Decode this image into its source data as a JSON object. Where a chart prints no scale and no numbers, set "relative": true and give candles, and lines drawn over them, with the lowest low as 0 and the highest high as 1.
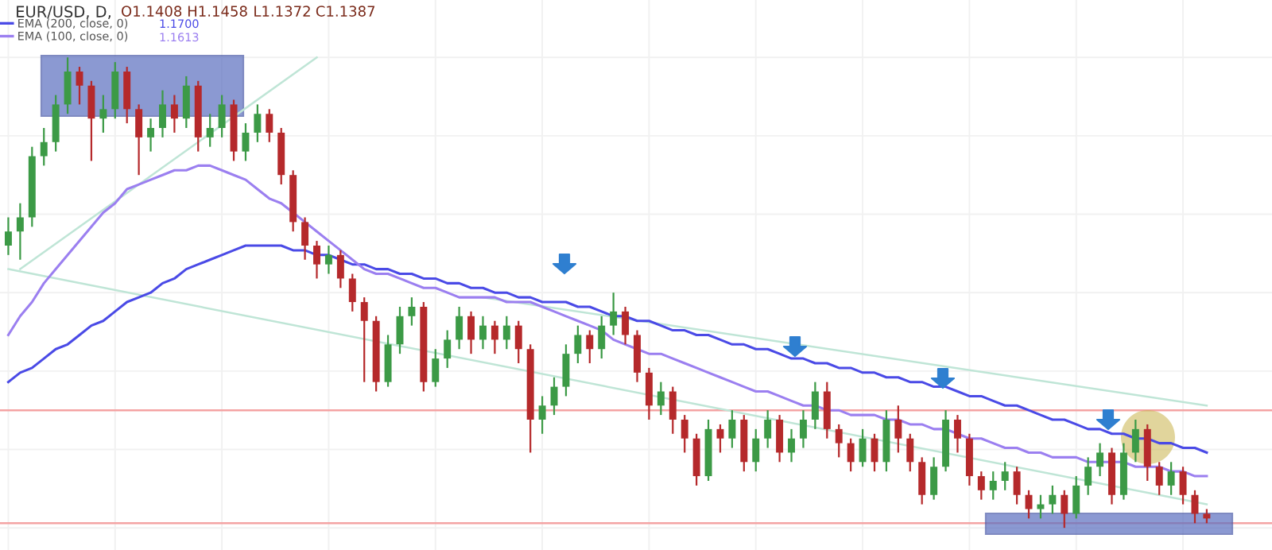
{
  "chart_data": {
    "type": "candlestick",
    "relative": true,
    "grid": true,
    "legend": "top left",
    "categories": [
      null,
      null,
      null,
      null,
      null,
      null,
      null,
      null,
      null,
      null,
      null,
      null,
      null,
      null,
      null,
      null,
      null,
      null,
      null,
      null,
      null,
      null,
      null,
      null,
      null,
      null,
      null,
      null,
      null,
      null,
      null,
      null,
      null,
      null,
      null,
      null,
      null,
      null,
      null,
      null,
      null,
      null,
      null,
      null,
      null,
      null,
      null,
      null,
      null,
      null,
      null,
      null,
      null,
      null,
      null,
      null,
      null,
      null,
      null,
      null,
      null,
      null,
      null,
      null,
      null,
      null,
      null,
      null,
      null,
      null,
      null,
      null,
      null,
      null,
      null,
      null,
      null,
      null,
      null,
      null,
      null,
      null,
      null,
      null,
      null,
      null,
      null,
      null,
      null,
      null,
      null,
      null,
      null,
      null,
      null,
      null,
      null,
      null,
      null,
      null,
      null,
      null
    ],
    "ohlc": [
      [
        0.6,
        0.66,
        0.58,
        0.63
      ],
      [
        0.63,
        0.69,
        0.57,
        0.66
      ],
      [
        0.66,
        0.81,
        0.64,
        0.79
      ],
      [
        0.79,
        0.85,
        0.77,
        0.82
      ],
      [
        0.82,
        0.92,
        0.8,
        0.9
      ],
      [
        0.9,
        1.0,
        0.88,
        0.97
      ],
      [
        0.97,
        0.98,
        0.9,
        0.94
      ],
      [
        0.94,
        0.95,
        0.78,
        0.87
      ],
      [
        0.87,
        0.92,
        0.84,
        0.89
      ],
      [
        0.89,
        0.99,
        0.87,
        0.97
      ],
      [
        0.97,
        0.98,
        0.86,
        0.89
      ],
      [
        0.89,
        0.9,
        0.75,
        0.83
      ],
      [
        0.83,
        0.87,
        0.8,
        0.85
      ],
      [
        0.85,
        0.93,
        0.83,
        0.9
      ],
      [
        0.9,
        0.92,
        0.84,
        0.87
      ],
      [
        0.87,
        0.96,
        0.85,
        0.94
      ],
      [
        0.94,
        0.95,
        0.8,
        0.83
      ],
      [
        0.83,
        0.88,
        0.81,
        0.85
      ],
      [
        0.85,
        0.92,
        0.83,
        0.9
      ],
      [
        0.9,
        0.91,
        0.78,
        0.8
      ],
      [
        0.8,
        0.86,
        0.78,
        0.84
      ],
      [
        0.84,
        0.9,
        0.82,
        0.88
      ],
      [
        0.88,
        0.89,
        0.82,
        0.84
      ],
      [
        0.84,
        0.85,
        0.73,
        0.75
      ],
      [
        0.75,
        0.76,
        0.63,
        0.65
      ],
      [
        0.65,
        0.66,
        0.57,
        0.6
      ],
      [
        0.6,
        0.61,
        0.53,
        0.56
      ],
      [
        0.56,
        0.6,
        0.54,
        0.58
      ],
      [
        0.58,
        0.59,
        0.51,
        0.53
      ],
      [
        0.53,
        0.54,
        0.46,
        0.48
      ],
      [
        0.48,
        0.49,
        0.31,
        0.44
      ],
      [
        0.44,
        0.45,
        0.29,
        0.31
      ],
      [
        0.31,
        0.41,
        0.3,
        0.39
      ],
      [
        0.39,
        0.47,
        0.37,
        0.45
      ],
      [
        0.45,
        0.49,
        0.43,
        0.47
      ],
      [
        0.47,
        0.48,
        0.29,
        0.31
      ],
      [
        0.31,
        0.38,
        0.3,
        0.36
      ],
      [
        0.36,
        0.42,
        0.34,
        0.4
      ],
      [
        0.4,
        0.47,
        0.38,
        0.45
      ],
      [
        0.45,
        0.46,
        0.37,
        0.4
      ],
      [
        0.4,
        0.45,
        0.38,
        0.43
      ],
      [
        0.43,
        0.44,
        0.37,
        0.4
      ],
      [
        0.4,
        0.45,
        0.38,
        0.43
      ],
      [
        0.43,
        0.44,
        0.35,
        0.38
      ],
      [
        0.38,
        0.39,
        0.16,
        0.23
      ],
      [
        0.23,
        0.28,
        0.2,
        0.26
      ],
      [
        0.26,
        0.32,
        0.24,
        0.3
      ],
      [
        0.3,
        0.39,
        0.28,
        0.37
      ],
      [
        0.37,
        0.43,
        0.35,
        0.41
      ],
      [
        0.41,
        0.42,
        0.35,
        0.38
      ],
      [
        0.38,
        0.45,
        0.36,
        0.43
      ],
      [
        0.43,
        0.5,
        0.41,
        0.46
      ],
      [
        0.46,
        0.47,
        0.39,
        0.41
      ],
      [
        0.41,
        0.42,
        0.31,
        0.33
      ],
      [
        0.33,
        0.34,
        0.23,
        0.26
      ],
      [
        0.26,
        0.31,
        0.24,
        0.29
      ],
      [
        0.29,
        0.3,
        0.2,
        0.23
      ],
      [
        0.23,
        0.24,
        0.16,
        0.19
      ],
      [
        0.19,
        0.2,
        0.09,
        0.11
      ],
      [
        0.11,
        0.23,
        0.1,
        0.21
      ],
      [
        0.21,
        0.22,
        0.16,
        0.19
      ],
      [
        0.19,
        0.25,
        0.17,
        0.23
      ],
      [
        0.23,
        0.24,
        0.12,
        0.14
      ],
      [
        0.14,
        0.21,
        0.12,
        0.19
      ],
      [
        0.19,
        0.25,
        0.17,
        0.23
      ],
      [
        0.23,
        0.24,
        0.14,
        0.16
      ],
      [
        0.16,
        0.21,
        0.14,
        0.19
      ],
      [
        0.19,
        0.25,
        0.17,
        0.23
      ],
      [
        0.23,
        0.31,
        0.21,
        0.29
      ],
      [
        0.29,
        0.31,
        0.19,
        0.21
      ],
      [
        0.21,
        0.22,
        0.15,
        0.18
      ],
      [
        0.18,
        0.19,
        0.12,
        0.14
      ],
      [
        0.14,
        0.21,
        0.13,
        0.19
      ],
      [
        0.19,
        0.2,
        0.12,
        0.14
      ],
      [
        0.14,
        0.25,
        0.12,
        0.23
      ],
      [
        0.23,
        0.26,
        0.16,
        0.19
      ],
      [
        0.19,
        0.2,
        0.12,
        0.14
      ],
      [
        0.14,
        0.15,
        0.05,
        0.07
      ],
      [
        0.07,
        0.15,
        0.06,
        0.13
      ],
      [
        0.13,
        0.25,
        0.12,
        0.23
      ],
      [
        0.23,
        0.24,
        0.16,
        0.19
      ],
      [
        0.19,
        0.2,
        0.09,
        0.11
      ],
      [
        0.11,
        0.12,
        0.06,
        0.08
      ],
      [
        0.08,
        0.12,
        0.06,
        0.1
      ],
      [
        0.1,
        0.14,
        0.08,
        0.12
      ],
      [
        0.12,
        0.13,
        0.05,
        0.07
      ],
      [
        0.07,
        0.08,
        0.02,
        0.04
      ],
      [
        0.04,
        0.07,
        0.02,
        0.05
      ],
      [
        0.05,
        0.09,
        0.03,
        0.07
      ],
      [
        0.07,
        0.08,
        0.0,
        0.03
      ],
      [
        0.03,
        0.11,
        0.02,
        0.09
      ],
      [
        0.09,
        0.15,
        0.07,
        0.13
      ],
      [
        0.13,
        0.18,
        0.11,
        0.16
      ],
      [
        0.16,
        0.17,
        0.05,
        0.07
      ],
      [
        0.07,
        0.18,
        0.06,
        0.16
      ],
      [
        0.16,
        0.23,
        0.14,
        0.21
      ],
      [
        0.21,
        0.22,
        0.1,
        0.13
      ],
      [
        0.13,
        0.14,
        0.07,
        0.09
      ],
      [
        0.09,
        0.14,
        0.07,
        0.12
      ],
      [
        0.12,
        0.13,
        0.05,
        0.07
      ],
      [
        0.07,
        0.08,
        0.01,
        0.03
      ],
      [
        0.03,
        0.04,
        0.01,
        0.02
      ]
    ],
    "series": [
      {
        "type": "line",
        "name": "EMA (200, close, 0)",
        "color": "#4a4ae6",
        "values": [
          0.31,
          0.33,
          0.34,
          0.36,
          0.38,
          0.39,
          0.41,
          0.43,
          0.44,
          0.46,
          0.48,
          0.49,
          0.5,
          0.52,
          0.53,
          0.55,
          0.56,
          0.57,
          0.58,
          0.59,
          0.6,
          0.6,
          0.6,
          0.6,
          0.59,
          0.59,
          0.58,
          0.58,
          0.57,
          0.56,
          0.56,
          0.55,
          0.55,
          0.54,
          0.54,
          0.53,
          0.53,
          0.52,
          0.52,
          0.51,
          0.51,
          0.5,
          0.5,
          0.49,
          0.49,
          0.48,
          0.48,
          0.48,
          0.47,
          0.47,
          0.46,
          0.45,
          0.45,
          0.44,
          0.44,
          0.43,
          0.42,
          0.42,
          0.41,
          0.41,
          0.4,
          0.39,
          0.39,
          0.38,
          0.38,
          0.37,
          0.36,
          0.36,
          0.35,
          0.35,
          0.34,
          0.34,
          0.33,
          0.33,
          0.32,
          0.32,
          0.31,
          0.31,
          0.3,
          0.3,
          0.29,
          0.28,
          0.28,
          0.27,
          0.26,
          0.26,
          0.25,
          0.24,
          0.23,
          0.23,
          0.22,
          0.21,
          0.21,
          0.2,
          0.2,
          0.19,
          0.19,
          0.18,
          0.18,
          0.17,
          0.17,
          0.16
        ]
      },
      {
        "type": "line",
        "name": "EMA (100, close, 0)",
        "color": "#9b7ff0",
        "values": [
          0.41,
          0.45,
          0.48,
          0.52,
          0.55,
          0.58,
          0.61,
          0.64,
          0.67,
          0.69,
          0.72,
          0.73,
          0.74,
          0.75,
          0.76,
          0.76,
          0.77,
          0.77,
          0.76,
          0.75,
          0.74,
          0.72,
          0.7,
          0.69,
          0.67,
          0.65,
          0.63,
          0.61,
          0.59,
          0.57,
          0.55,
          0.54,
          0.54,
          0.53,
          0.52,
          0.51,
          0.51,
          0.5,
          0.49,
          0.49,
          0.49,
          0.49,
          0.48,
          0.48,
          0.48,
          0.47,
          0.46,
          0.45,
          0.44,
          0.43,
          0.42,
          0.4,
          0.39,
          0.38,
          0.37,
          0.37,
          0.36,
          0.35,
          0.34,
          0.33,
          0.32,
          0.31,
          0.3,
          0.29,
          0.29,
          0.28,
          0.27,
          0.26,
          0.26,
          0.25,
          0.25,
          0.24,
          0.24,
          0.24,
          0.23,
          0.23,
          0.22,
          0.22,
          0.21,
          0.21,
          0.2,
          0.19,
          0.19,
          0.18,
          0.17,
          0.17,
          0.16,
          0.16,
          0.15,
          0.15,
          0.15,
          0.14,
          0.14,
          0.14,
          0.14,
          0.13,
          0.13,
          0.13,
          0.12,
          0.12,
          0.11,
          0.11
        ]
      },
      {
        "type": "line",
        "color": "#bfe5d6",
        "values": [
          null,
          null,
          null,
          null,
          null,
          null,
          null,
          null,
          null,
          null,
          null,
          null,
          null,
          null,
          null,
          null,
          null,
          null,
          null,
          null,
          null,
          null,
          null,
          null,
          null,
          null,
          null,
          null,
          null,
          null,
          null,
          null,
          null,
          null,
          null,
          null,
          null,
          null,
          null,
          null,
          0.49,
          null,
          null,
          null,
          null,
          null,
          null,
          null,
          null,
          null,
          null,
          null,
          null,
          null,
          null,
          null,
          null,
          null,
          null,
          null,
          null,
          null,
          null,
          null,
          null,
          null,
          null,
          null,
          null,
          null,
          null,
          null,
          null,
          null,
          null,
          null,
          null,
          null,
          null,
          null,
          null,
          null,
          null,
          null,
          null,
          null,
          null,
          null,
          null,
          null,
          null,
          null,
          null,
          null,
          null,
          null,
          null,
          null,
          null,
          null,
          null,
          0.26
        ]
      },
      {
        "type": "line",
        "color": "#bfe5d6",
        "values": [
          null,
          0.55,
          null,
          null,
          null,
          null,
          null,
          null,
          null,
          null,
          null,
          null,
          null,
          null,
          null,
          null,
          null,
          null,
          null,
          null,
          null,
          null,
          null,
          null,
          null,
          null,
          1.0,
          null,
          null,
          null,
          null,
          null,
          null,
          null,
          null,
          null,
          null,
          null,
          null,
          null,
          null,
          null,
          null,
          null,
          null,
          null,
          null,
          null,
          null,
          null,
          null,
          null,
          null,
          null,
          null,
          null,
          null,
          null,
          null,
          null,
          null,
          null,
          null,
          null,
          null,
          null,
          null,
          null,
          null,
          null,
          null,
          null,
          null,
          null,
          null,
          null,
          null,
          null,
          null,
          null,
          null,
          null,
          null,
          null,
          null,
          null,
          null,
          null,
          null,
          null,
          null,
          null,
          null,
          null,
          null,
          null,
          null,
          null,
          null,
          null,
          null,
          null
        ]
      },
      {
        "type": "line",
        "color": "#bfe5d6",
        "values": [
          0.55,
          null,
          null,
          null,
          null,
          null,
          null,
          null,
          null,
          null,
          null,
          null,
          null,
          null,
          null,
          null,
          null,
          null,
          null,
          null,
          null,
          null,
          null,
          null,
          null,
          null,
          null,
          null,
          null,
          null,
          null,
          null,
          null,
          null,
          null,
          null,
          null,
          null,
          null,
          null,
          null,
          null,
          null,
          null,
          null,
          null,
          null,
          null,
          null,
          null,
          null,
          null,
          null,
          null,
          null,
          null,
          null,
          null,
          null,
          null,
          null,
          null,
          null,
          null,
          null,
          null,
          null,
          null,
          null,
          null,
          null,
          null,
          null,
          null,
          null,
          null,
          null,
          null,
          null,
          null,
          null,
          null,
          null,
          null,
          null,
          null,
          null,
          null,
          null,
          null,
          null,
          null,
          null,
          null,
          null,
          null,
          null,
          null,
          null,
          null,
          null,
          0.05
        ]
      }
    ],
    "ref_lines": [
      {
        "axis": "y",
        "value": 0.25,
        "color": "#f4a3a3"
      },
      {
        "axis": "y",
        "value": 0.01,
        "color": "#f4a3a3"
      }
    ],
    "annotations": [
      "EUR/USD, D,",
      "O1.1408",
      "H1.1458",
      "L1.1372",
      "C1.1387",
      "1.1700",
      "1.1613"
    ]
  }
}
